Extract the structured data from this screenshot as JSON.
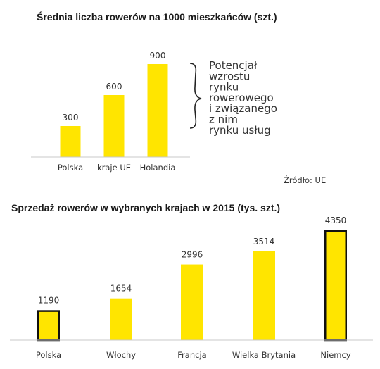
{
  "chart_data": [
    {
      "type": "bar",
      "title": "Średnia liczba rowerów na 1000 mieszkańców (szt.)",
      "categories": [
        "Polska",
        "kraje UE",
        "Holandia"
      ],
      "values": [
        300,
        600,
        900
      ],
      "ylim": [
        0,
        900
      ],
      "grid": false,
      "bar_color": "#ffe500",
      "annotation": [
        "Potencjał",
        "wzrostu",
        "rynku",
        "rowerowego",
        "i związanego",
        "z nim",
        "rynku usług"
      ],
      "source": "Źródło: UE"
    },
    {
      "type": "bar",
      "title": "Sprzedaż rowerów w wybranych krajach w 2015 (tys. szt.)",
      "categories": [
        "Polska",
        "Włochy",
        "Francja",
        "Wielka Brytania",
        "Niemcy"
      ],
      "values": [
        1190,
        1654,
        2996,
        3514,
        4350
      ],
      "ylim": [
        0,
        4350
      ],
      "grid": false,
      "bar_color": "#ffe500",
      "highlighted_bars": [
        "Polska",
        "Niemcy"
      ]
    }
  ]
}
